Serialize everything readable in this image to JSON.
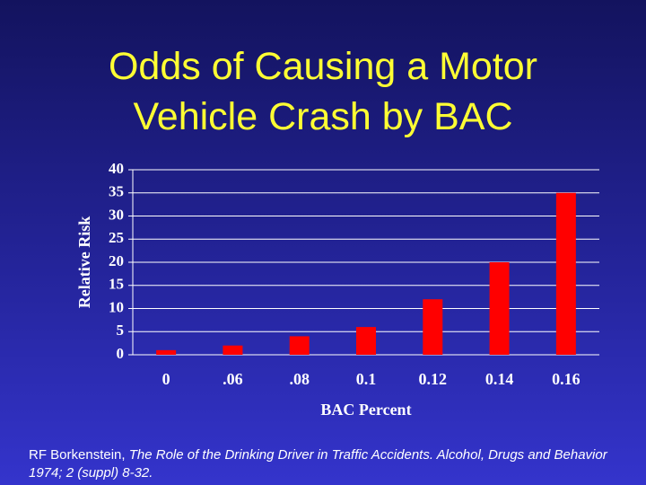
{
  "chart_data": {
    "type": "bar",
    "title": "Odds of Causing a Motor Vehicle Crash by BAC",
    "x_label": "BAC Percent",
    "y_label": "Relative Risk",
    "categories": [
      "0",
      ".06",
      ".08",
      "0.1",
      "0.12",
      "0.14",
      "0.16"
    ],
    "values": [
      1,
      2,
      4,
      6,
      12,
      20,
      35
    ],
    "color": "#ff0000",
    "ylim": [
      0,
      40
    ],
    "yticks": [
      0,
      5,
      10,
      15,
      20,
      25,
      30,
      35,
      40
    ],
    "grid": true
  },
  "source": {
    "author": "RF Borkenstein,",
    "reference": "The Role of the Drinking Driver in Traffic Accidents. Alcohol, Drugs and Behavior 1974; 2 (suppl) 8-32."
  }
}
